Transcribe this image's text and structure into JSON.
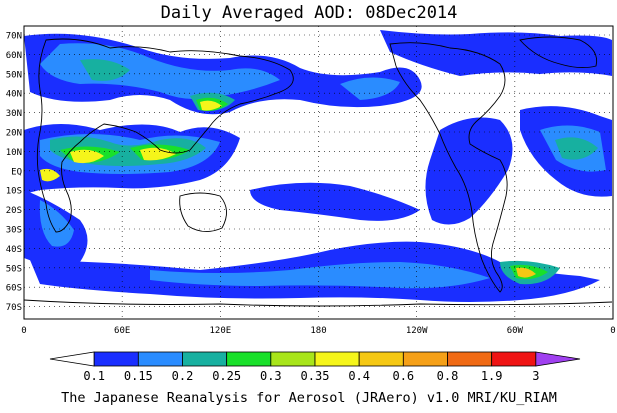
{
  "title": "Daily Averaged AOD: 08Dec2014",
  "lat_labels": [
    "70N",
    "60N",
    "50N",
    "40N",
    "30N",
    "20N",
    "10N",
    "EQ",
    "10S",
    "20S",
    "30S",
    "40S",
    "50S",
    "60S",
    "70S"
  ],
  "lon_labels": [
    "0",
    "60E",
    "120E",
    "180",
    "120W",
    "60W",
    "0"
  ],
  "colorbar": {
    "labels": [
      "0.1",
      "0.15",
      "0.2",
      "0.25",
      "0.3",
      "0.35",
      "0.4",
      "0.6",
      "0.8",
      "1.9",
      "3"
    ],
    "colors": [
      "#ffffff",
      "#1a2eff",
      "#2a8cff",
      "#17b0a0",
      "#19e02a",
      "#a8e51a",
      "#f5f51a",
      "#f5c814",
      "#f5a018",
      "#f06a14",
      "#ef1414",
      "#a040f0"
    ]
  },
  "footer": "The Japanese Reanalysis for Aerosol (JRAero) v1.0 MRI/KU_RIAM"
}
